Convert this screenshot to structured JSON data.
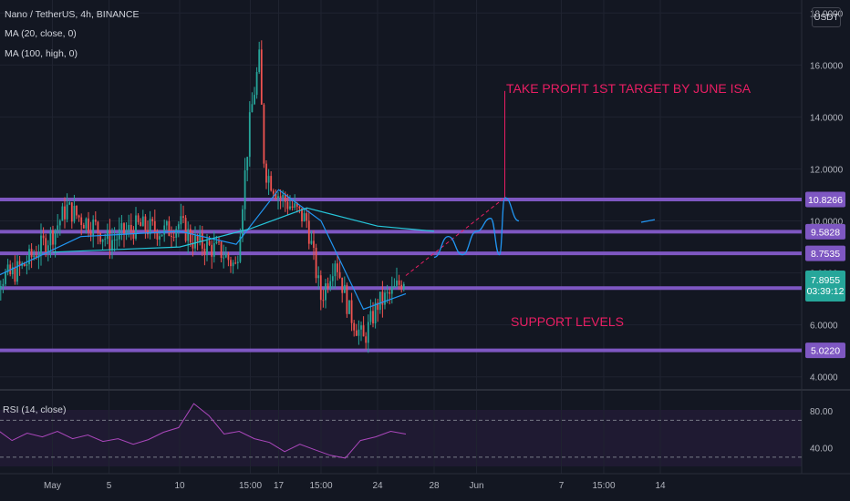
{
  "header": {
    "title": "Nano / TetherUS, 4h, BINANCE",
    "indicators": [
      "MA (20, close, 0)",
      "MA (100, high, 0)"
    ]
  },
  "currency_button": "USDT",
  "price_axis_labels": [
    "18.0000",
    "16.0000",
    "14.0000",
    "12.0000",
    "10.0000",
    "8.0000",
    "6.0000",
    "4.0000"
  ],
  "level_badges": [
    {
      "label": "10.8266",
      "color": "#7e57c2"
    },
    {
      "label": "9.5828",
      "color": "#7e57c2"
    },
    {
      "label": "8.7535",
      "color": "#7e57c2"
    },
    {
      "label": "7.4175",
      "color": "#7e57c2"
    },
    {
      "label": "5.0220",
      "color": "#7e57c2"
    }
  ],
  "last_price": {
    "value": "7.8955",
    "countdown": "03:39:12",
    "color": "#26a69a"
  },
  "annotations": {
    "target": "TAKE PROFIT 1ST TARGET BY JUNE ISA",
    "support": "SUPPORT LEVELS",
    "color": "#e91e63"
  },
  "rsi": {
    "label": "RSI (14, close)",
    "axis_labels": [
      "80.00",
      "40.00"
    ]
  },
  "time_axis_labels": [
    "May",
    "5",
    "10",
    "15:00",
    "17",
    "15:00",
    "24",
    "28",
    "Jun",
    "7",
    "15:00",
    "14"
  ],
  "colors": {
    "background": "#131722",
    "up": "#26a69a",
    "down": "#ef5350",
    "level": "#7e57c2",
    "ma20": "#2196f3",
    "ma100": "#26c6da",
    "rsi": "#ab47bc",
    "projection": "#e91e63"
  },
  "chart_data": {
    "type": "candlestick",
    "symbol": "Nano / TetherUS",
    "interval": "4h",
    "exchange": "BINANCE",
    "ylim": [
      3.5,
      18.5
    ],
    "horizontal_levels": [
      10.8266,
      9.5828,
      8.7535,
      7.4175,
      5.022
    ],
    "last_price": 7.8955,
    "price_path": [
      {
        "date": "Apr 27",
        "price": 7.7
      },
      {
        "date": "Apr 29",
        "price": 7.9
      },
      {
        "date": "Apr 30",
        "price": 8.3
      },
      {
        "date": "May 1",
        "price": 9.5
      },
      {
        "date": "May 2",
        "price": 10.5
      },
      {
        "date": "May 3",
        "price": 10.1
      },
      {
        "date": "May 4",
        "price": 9.8
      },
      {
        "date": "May 5",
        "price": 9.2
      },
      {
        "date": "May 7",
        "price": 9.8
      },
      {
        "date": "May 9",
        "price": 9.6
      },
      {
        "date": "May 10",
        "price": 9.9
      },
      {
        "date": "May 11",
        "price": 9.2
      },
      {
        "date": "May 13",
        "price": 8.8
      },
      {
        "date": "May 14",
        "price": 8.2
      },
      {
        "date": "May 15",
        "price": 14.0
      },
      {
        "date": "May 15 15:00",
        "price": 16.2
      },
      {
        "date": "May 16",
        "price": 12.0
      },
      {
        "date": "May 17",
        "price": 11.0
      },
      {
        "date": "May 18",
        "price": 10.5
      },
      {
        "date": "May 19",
        "price": 10.0
      },
      {
        "date": "May 20",
        "price": 7.0
      },
      {
        "date": "May 21",
        "price": 8.6
      },
      {
        "date": "May 22",
        "price": 6.5
      },
      {
        "date": "May 23",
        "price": 5.4
      },
      {
        "date": "May 24",
        "price": 6.8
      },
      {
        "date": "May 25",
        "price": 7.2
      },
      {
        "date": "May 26",
        "price": 7.9
      }
    ],
    "ma20": [
      {
        "date": "Apr 27",
        "value": 7.6
      },
      {
        "date": "May 3",
        "value": 9.4
      },
      {
        "date": "May 10",
        "value": 9.6
      },
      {
        "date": "May 14",
        "value": 9.1
      },
      {
        "date": "May 17",
        "value": 11.2
      },
      {
        "date": "May 20",
        "value": 10.0
      },
      {
        "date": "May 23",
        "value": 6.6
      },
      {
        "date": "May 26",
        "value": 7.2
      }
    ],
    "ma100": [
      {
        "date": "May 1",
        "value": 8.8
      },
      {
        "date": "May 10",
        "value": 9.0
      },
      {
        "date": "May 15",
        "value": 9.7
      },
      {
        "date": "May 19",
        "value": 10.5
      },
      {
        "date": "May 24",
        "value": 9.8
      },
      {
        "date": "May 28",
        "value": 9.6
      }
    ],
    "projection": [
      {
        "date": "May 26",
        "price": 7.9
      },
      {
        "date": "Jun 3",
        "price": 10.9
      }
    ],
    "projected_path": [
      {
        "date": "May 28",
        "price": 8.6
      },
      {
        "date": "May 29",
        "price": 9.4
      },
      {
        "date": "May 30",
        "price": 8.7
      },
      {
        "date": "Jun 1",
        "price": 9.6
      },
      {
        "date": "Jun 2",
        "price": 10.1
      },
      {
        "date": "Jun 2 15:00",
        "price": 8.7
      },
      {
        "date": "Jun 3",
        "price": 10.9
      },
      {
        "date": "Jun 4",
        "price": 10.0
      }
    ],
    "target_line": {
      "date": "Jun 3",
      "from": 10.9,
      "to": 15.0
    },
    "rsi": {
      "period": 14,
      "upper": 70,
      "lower": 30,
      "axis_ticks": [
        80,
        40
      ],
      "values": [
        55,
        60,
        48,
        56,
        52,
        58,
        50,
        54,
        47,
        50,
        44,
        49,
        57,
        62,
        88,
        75,
        55,
        58,
        50,
        46,
        36,
        44,
        38,
        32,
        29,
        48,
        52,
        58,
        55
      ]
    }
  }
}
